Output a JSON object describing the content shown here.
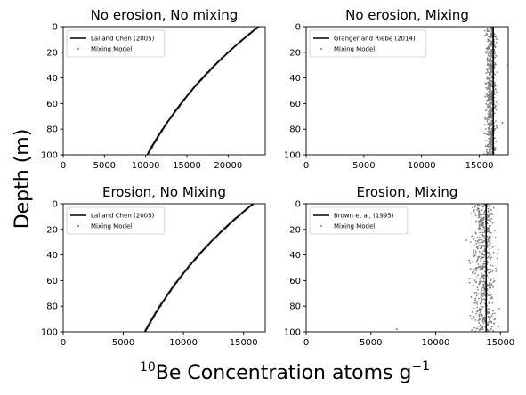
{
  "figure": {
    "ylabel": "Depth (m)",
    "xlabel_main": "Be Concentration atoms g",
    "xlabel_sup_pre": "10",
    "xlabel_sup_post": "−1"
  },
  "colors": {
    "analytic_line": "#000000",
    "mixing_points": "#808080",
    "axes": "#000000"
  },
  "chart_data": [
    {
      "type": "scatter",
      "title": "No erosion, No mixing",
      "xlim": [
        0,
        24500
      ],
      "ylim": [
        100,
        0
      ],
      "xticks": [
        0,
        5000,
        10000,
        15000,
        20000
      ],
      "yticks": [
        0,
        20,
        40,
        60,
        80,
        100
      ],
      "legend_position": "upper-left",
      "curve": {
        "kind": "exponential",
        "surface_value": 23700,
        "value_at_100m": 10200
      },
      "series": [
        {
          "name": "Lal and Chen (2005)",
          "kind": "line",
          "x": [
            23700,
            21900,
            20200,
            18700,
            17300,
            16000,
            14800,
            13700,
            12700,
            11700,
            10200
          ],
          "y": [
            0,
            10,
            20,
            30,
            40,
            50,
            60,
            70,
            80,
            90,
            100
          ]
        },
        {
          "name": "Mixing Model",
          "kind": "points",
          "spread": 90,
          "note_center": "follows Lal and Chen (2005) curve"
        }
      ]
    },
    {
      "type": "scatter",
      "title": "No erosion, Mixing",
      "xlim": [
        0,
        17500
      ],
      "ylim": [
        100,
        0
      ],
      "xticks": [
        0,
        5000,
        10000,
        15000
      ],
      "yticks": [
        0,
        20,
        40,
        60,
        80,
        100
      ],
      "legend_position": "upper-left",
      "series": [
        {
          "name": "Granger and Riebe (2014)",
          "kind": "vline",
          "x": 16200
        },
        {
          "name": "Mixing Model",
          "kind": "points",
          "center": 16000,
          "spread": 380,
          "outliers": [
            [
              17500,
              30
            ],
            [
              17000,
              75
            ]
          ]
        }
      ]
    },
    {
      "type": "scatter",
      "title": "Erosion, No Mixing",
      "xlim": [
        0,
        16800
      ],
      "ylim": [
        100,
        0
      ],
      "xticks": [
        0,
        5000,
        10000,
        15000
      ],
      "yticks": [
        0,
        20,
        40,
        60,
        80,
        100
      ],
      "legend_position": "upper-left",
      "curve": {
        "kind": "exponential",
        "surface_value": 15800,
        "value_at_100m": 6800
      },
      "series": [
        {
          "name": "Lal and Chen (2005)",
          "kind": "line",
          "x": [
            15800,
            14500,
            13300,
            12300,
            11300,
            10400,
            9500,
            8800,
            8000,
            7400,
            6800
          ],
          "y": [
            0,
            10,
            20,
            30,
            40,
            50,
            60,
            70,
            80,
            90,
            100
          ]
        },
        {
          "name": "Mixing Model",
          "kind": "points",
          "spread": 70,
          "note_center": "follows Lal and Chen (2005) curve"
        }
      ]
    },
    {
      "type": "scatter",
      "title": "Erosion, Mixing",
      "xlim": [
        0,
        15600
      ],
      "ylim": [
        100,
        0
      ],
      "xticks": [
        0,
        5000,
        10000,
        15000
      ],
      "yticks": [
        0,
        20,
        40,
        60,
        80,
        100
      ],
      "legend_position": "upper-left",
      "series": [
        {
          "name": "Brown et al, (1995)",
          "kind": "vline",
          "x": 13900
        },
        {
          "name": "Mixing Model",
          "kind": "points",
          "center": 13700,
          "spread": 700,
          "outliers": [
            [
              7000,
              98
            ]
          ]
        }
      ]
    }
  ]
}
